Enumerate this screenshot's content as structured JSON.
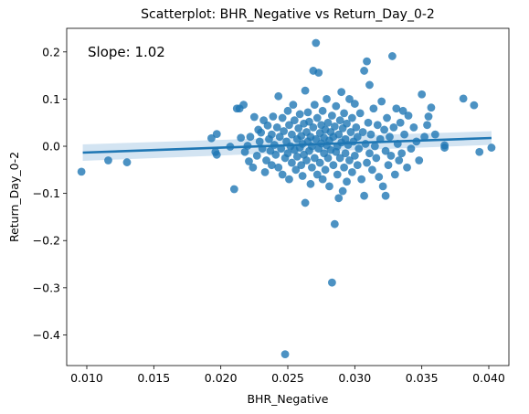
{
  "chart_data": {
    "type": "scatter",
    "title": "Scatterplot: BHR_Negative vs Return_Day_0-2",
    "xlabel": "BHR_Negative",
    "ylabel": "Return_Day_0-2",
    "annotation": "Slope: 1.02",
    "xlim": [
      0.0085,
      0.0415
    ],
    "ylim": [
      -0.465,
      0.25
    ],
    "xticks": [
      0.01,
      0.015,
      0.02,
      0.025,
      0.03,
      0.035,
      0.04
    ],
    "xtick_labels": [
      "0.010",
      "0.015",
      "0.020",
      "0.025",
      "0.030",
      "0.035",
      "0.040"
    ],
    "yticks": [
      0.2,
      0.1,
      0.0,
      -0.1,
      -0.2,
      -0.3,
      -0.4
    ],
    "ytick_labels": [
      "0.2",
      "0.1",
      "0.0",
      "−0.1",
      "−0.2",
      "−0.3",
      "−0.4"
    ],
    "grid": false,
    "colors": {
      "points": "#1f77b4",
      "line": "#1f77b4",
      "band": "#aecde8"
    },
    "regression": {
      "x": [
        0.0097,
        0.0402
      ],
      "y": [
        -0.0135,
        0.0175
      ],
      "ci_upper": [
        0.004,
        0.032
      ],
      "ci_lower": [
        -0.031,
        0.003
      ]
    },
    "points": [
      [
        0.0096,
        -0.054
      ],
      [
        0.0116,
        -0.03
      ],
      [
        0.013,
        -0.034
      ],
      [
        0.0193,
        0.017
      ],
      [
        0.0196,
        -0.012
      ],
      [
        0.0197,
        -0.018
      ],
      [
        0.0197,
        0.026
      ],
      [
        0.0207,
        -0.001
      ],
      [
        0.021,
        -0.091
      ],
      [
        0.0212,
        0.08
      ],
      [
        0.0214,
        0.08
      ],
      [
        0.0215,
        0.018
      ],
      [
        0.0217,
        0.088
      ],
      [
        0.0218,
        -0.012
      ],
      [
        0.022,
        0.001
      ],
      [
        0.0221,
        -0.032
      ],
      [
        0.0222,
        0.02
      ],
      [
        0.0224,
        -0.045
      ],
      [
        0.0225,
        0.062
      ],
      [
        0.0227,
        -0.02
      ],
      [
        0.0228,
        0.035
      ],
      [
        0.0229,
        0.01
      ],
      [
        0.023,
        0.029
      ],
      [
        0.0231,
        -0.005
      ],
      [
        0.0232,
        0.055
      ],
      [
        0.0233,
        -0.055
      ],
      [
        0.0234,
        -0.03
      ],
      [
        0.0235,
        0.044
      ],
      [
        0.0236,
        0.015
      ],
      [
        0.0237,
        -0.01
      ],
      [
        0.0238,
        0.025
      ],
      [
        0.0238,
        -0.04
      ],
      [
        0.0239,
        0.063
      ],
      [
        0.024,
        0.003
      ],
      [
        0.0241,
        -0.018
      ],
      [
        0.0242,
        0.04
      ],
      [
        0.0243,
        0.106
      ],
      [
        0.0243,
        -0.045
      ],
      [
        0.0244,
        0.02
      ],
      [
        0.0245,
        -0.005
      ],
      [
        0.0246,
        0.06
      ],
      [
        0.0246,
        -0.06
      ],
      [
        0.0247,
        0.032
      ],
      [
        0.0248,
        -0.025
      ],
      [
        0.0248,
        -0.441
      ],
      [
        0.0249,
        0.01
      ],
      [
        0.025,
        0.075
      ],
      [
        0.025,
        -0.015
      ],
      [
        0.0251,
        0.045
      ],
      [
        0.0251,
        -0.07
      ],
      [
        0.0252,
        0.0
      ],
      [
        0.0253,
        0.025
      ],
      [
        0.0253,
        -0.035
      ],
      [
        0.0254,
        0.088
      ],
      [
        0.0255,
        -0.008
      ],
      [
        0.0255,
        0.055
      ],
      [
        0.0256,
        -0.05
      ],
      [
        0.0257,
        0.015
      ],
      [
        0.0257,
        -0.022
      ],
      [
        0.0258,
        0.038
      ],
      [
        0.0259,
        -0.003
      ],
      [
        0.0259,
        0.068
      ],
      [
        0.026,
        -0.04
      ],
      [
        0.026,
        0.022
      ],
      [
        0.0261,
        0.005
      ],
      [
        0.0261,
        -0.063
      ],
      [
        0.0262,
        0.048
      ],
      [
        0.0262,
        -0.018
      ],
      [
        0.0263,
        0.118
      ],
      [
        0.0263,
        -0.12
      ],
      [
        0.0264,
        0.03
      ],
      [
        0.0264,
        -0.03
      ],
      [
        0.0265,
        0.01
      ],
      [
        0.0265,
        0.072
      ],
      [
        0.0266,
        -0.01
      ],
      [
        0.0266,
        0.052
      ],
      [
        0.0267,
        -0.08
      ],
      [
        0.0267,
        0.02
      ],
      [
        0.0268,
        0.0
      ],
      [
        0.0268,
        -0.045
      ],
      [
        0.0269,
        0.04
      ],
      [
        0.0269,
        0.16
      ],
      [
        0.027,
        -0.025
      ],
      [
        0.027,
        0.088
      ],
      [
        0.0271,
        0.015
      ],
      [
        0.0271,
        0.219
      ],
      [
        0.0272,
        -0.06
      ],
      [
        0.0272,
        0.06
      ],
      [
        0.0273,
        0.156
      ],
      [
        0.0273,
        -0.005
      ],
      [
        0.0274,
        0.028
      ],
      [
        0.0274,
        -0.035
      ],
      [
        0.0275,
        0.045
      ],
      [
        0.0275,
        0.006
      ],
      [
        0.0276,
        -0.07
      ],
      [
        0.0276,
        0.075
      ],
      [
        0.0277,
        0.018
      ],
      [
        0.0277,
        -0.015
      ],
      [
        0.0278,
        0.035
      ],
      [
        0.0278,
        -0.05
      ],
      [
        0.0279,
        0.002
      ],
      [
        0.0279,
        0.1
      ],
      [
        0.028,
        -0.025
      ],
      [
        0.028,
        0.05
      ],
      [
        0.0281,
        0.012
      ],
      [
        0.0281,
        -0.085
      ],
      [
        0.0282,
        0.03
      ],
      [
        0.0282,
        -0.008
      ],
      [
        0.0283,
        -0.289
      ],
      [
        0.0283,
        0.065
      ],
      [
        0.0284,
        -0.04
      ],
      [
        0.0284,
        0.02
      ],
      [
        0.0285,
        -0.165
      ],
      [
        0.0285,
        0.042
      ],
      [
        0.0286,
        -0.012
      ],
      [
        0.0286,
        0.085
      ],
      [
        0.0287,
        0.0
      ],
      [
        0.0287,
        -0.06
      ],
      [
        0.0288,
        0.025
      ],
      [
        0.0288,
        -0.11
      ],
      [
        0.0289,
        0.055
      ],
      [
        0.0289,
        -0.025
      ],
      [
        0.029,
        0.115
      ],
      [
        0.029,
        0.008
      ],
      [
        0.0291,
        -0.095
      ],
      [
        0.0291,
        0.038
      ],
      [
        0.0292,
        -0.045
      ],
      [
        0.0292,
        0.07
      ],
      [
        0.0293,
        0.015
      ],
      [
        0.0293,
        -0.015
      ],
      [
        0.0294,
        0.048
      ],
      [
        0.0294,
        -0.075
      ],
      [
        0.0295,
        0.003
      ],
      [
        0.0296,
        0.1
      ],
      [
        0.0296,
        -0.03
      ],
      [
        0.0297,
        0.03
      ],
      [
        0.0298,
        -0.055
      ],
      [
        0.0298,
        0.06
      ],
      [
        0.0299,
        0.01
      ],
      [
        0.03,
        -0.02
      ],
      [
        0.03,
        0.09
      ],
      [
        0.0301,
        0.04
      ],
      [
        0.0302,
        -0.04
      ],
      [
        0.0302,
        0.02
      ],
      [
        0.0303,
        -0.005
      ],
      [
        0.0304,
        0.07
      ],
      [
        0.0305,
        -0.07
      ],
      [
        0.0306,
        0.03
      ],
      [
        0.0307,
        -0.105
      ],
      [
        0.0307,
        0.16
      ],
      [
        0.0308,
        0.005
      ],
      [
        0.0309,
        0.18
      ],
      [
        0.0309,
        -0.035
      ],
      [
        0.031,
        0.05
      ],
      [
        0.0311,
        -0.015
      ],
      [
        0.0311,
        0.13
      ],
      [
        0.0312,
        0.025
      ],
      [
        0.0313,
        -0.05
      ],
      [
        0.0314,
        0.08
      ],
      [
        0.0315,
        0.0
      ],
      [
        0.0316,
        -0.025
      ],
      [
        0.0317,
        0.045
      ],
      [
        0.0318,
        -0.065
      ],
      [
        0.0319,
        0.015
      ],
      [
        0.032,
        0.095
      ],
      [
        0.0321,
        -0.085
      ],
      [
        0.0322,
        0.035
      ],
      [
        0.0323,
        -0.01
      ],
      [
        0.0323,
        -0.105
      ],
      [
        0.0324,
        0.06
      ],
      [
        0.0325,
        -0.04
      ],
      [
        0.0326,
        0.02
      ],
      [
        0.0327,
        -0.02
      ],
      [
        0.0328,
        0.191
      ],
      [
        0.0329,
        0.04
      ],
      [
        0.033,
        -0.06
      ],
      [
        0.0331,
        0.08
      ],
      [
        0.0332,
        0.005
      ],
      [
        0.0333,
        -0.03
      ],
      [
        0.0334,
        0.05
      ],
      [
        0.0335,
        -0.015
      ],
      [
        0.0336,
        0.075
      ],
      [
        0.0337,
        0.025
      ],
      [
        0.0339,
        -0.045
      ],
      [
        0.034,
        0.065
      ],
      [
        0.0342,
        -0.005
      ],
      [
        0.0344,
        0.04
      ],
      [
        0.0346,
        0.01
      ],
      [
        0.0348,
        -0.03
      ],
      [
        0.035,
        0.11
      ],
      [
        0.0352,
        0.02
      ],
      [
        0.0354,
        0.045
      ],
      [
        0.0355,
        0.063
      ],
      [
        0.0357,
        0.082
      ],
      [
        0.036,
        0.025
      ],
      [
        0.0367,
        0.002
      ],
      [
        0.0367,
        -0.003
      ],
      [
        0.0381,
        0.101
      ],
      [
        0.0389,
        0.087
      ],
      [
        0.0393,
        -0.012
      ],
      [
        0.0402,
        -0.003
      ]
    ]
  }
}
